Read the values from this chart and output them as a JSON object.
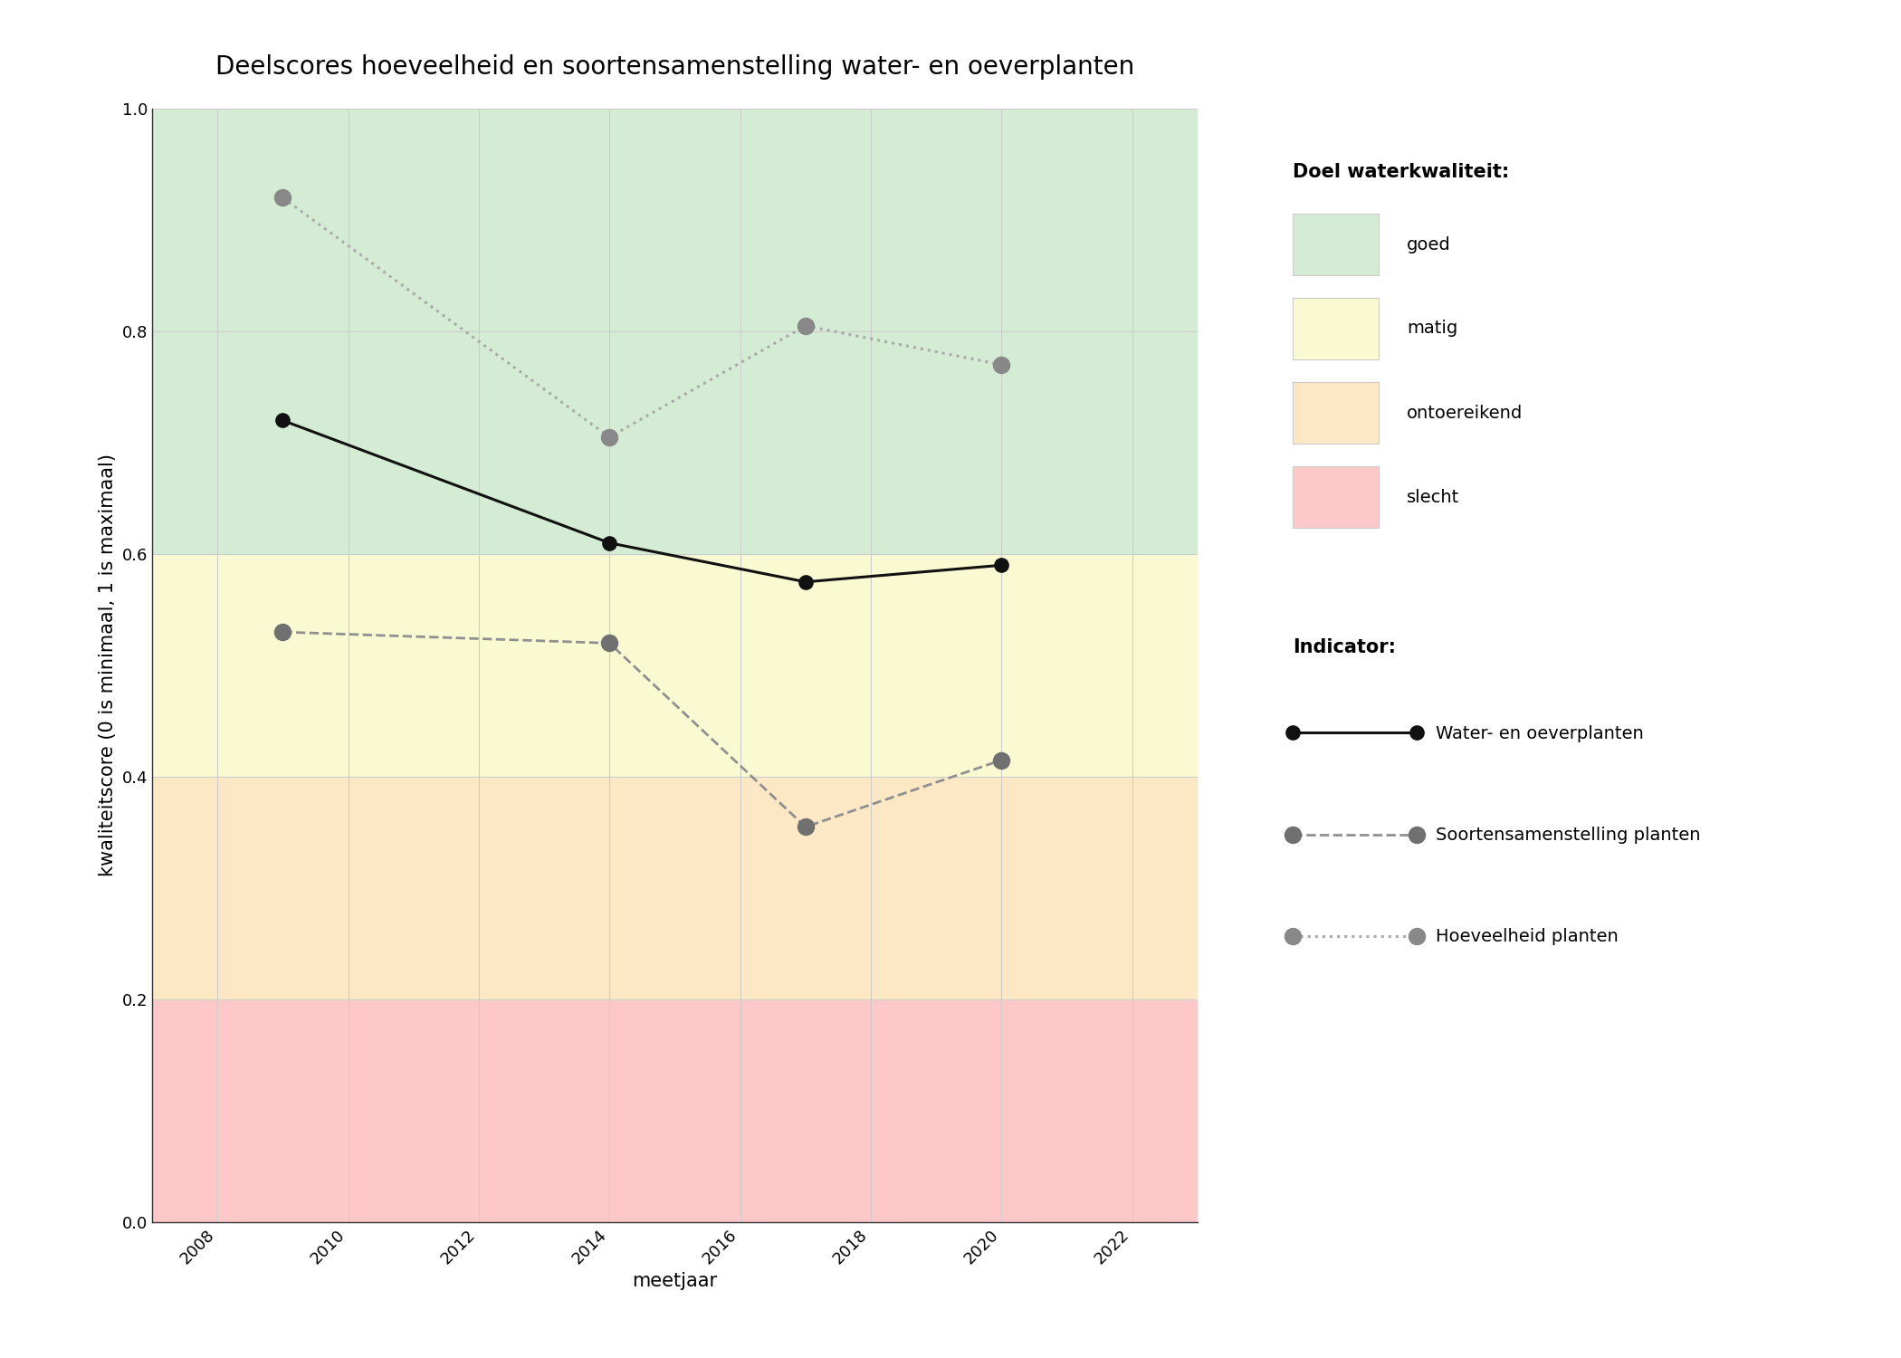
{
  "title": "Deelscores hoeveelheid en soortensamenstelling water- en oeverplanten",
  "xlabel": "meetjaar",
  "ylabel": "kwaliteitscore (0 is minimaal, 1 is maximaal)",
  "xlim": [
    2007,
    2023
  ],
  "ylim": [
    0.0,
    1.0
  ],
  "xticks": [
    2008,
    2010,
    2012,
    2014,
    2016,
    2018,
    2020,
    2022
  ],
  "yticks": [
    0.0,
    0.2,
    0.4,
    0.6,
    0.8,
    1.0
  ],
  "plot_bg_color": "#ffffff",
  "zone_colors": {
    "goed": "#d5ecd4",
    "matig": "#fafad2",
    "ontoereikend": "#fde8c5",
    "slecht": "#ffc8c8"
  },
  "zone_limits": {
    "goed": [
      0.6,
      1.0
    ],
    "matig": [
      0.4,
      0.6
    ],
    "ontoereikend": [
      0.2,
      0.4
    ],
    "slecht": [
      0.0,
      0.2
    ]
  },
  "series": {
    "water_oeverplanten": {
      "years": [
        2009,
        2014,
        2017,
        2020
      ],
      "values": [
        0.72,
        0.61,
        0.575,
        0.59
      ],
      "color": "#111111",
      "linestyle": "solid",
      "linewidth": 2.2,
      "marker": "o",
      "markersize": 11,
      "markerfacecolor": "#111111",
      "markeredgecolor": "#111111",
      "label": "Water- en oeverplanten"
    },
    "soortensamenstelling": {
      "years": [
        2009,
        2014,
        2017,
        2020
      ],
      "values": [
        0.53,
        0.52,
        0.355,
        0.415
      ],
      "color": "#909090",
      "linestyle": "dashed",
      "linewidth": 2.0,
      "marker": "o",
      "markersize": 13,
      "markerfacecolor": "#707070",
      "markeredgecolor": "#707070",
      "label": "Soortensamenstelling planten"
    },
    "hoeveelheid": {
      "years": [
        2009,
        2014,
        2017,
        2020
      ],
      "values": [
        0.92,
        0.705,
        0.805,
        0.77
      ],
      "color": "#aaaaaa",
      "linestyle": "dotted",
      "linewidth": 2.2,
      "marker": "o",
      "markersize": 13,
      "markerfacecolor": "#888888",
      "markeredgecolor": "#888888",
      "label": "Hoeveelheid planten"
    }
  },
  "legend_title_kwaliteit": "Doel waterkwaliteit:",
  "legend_title_indicator": "Indicator:",
  "legend_kwaliteit_labels": [
    "goed",
    "matig",
    "ontoereikend",
    "slecht"
  ],
  "legend_kwaliteit_colors": [
    "#d5ecd4",
    "#fafad2",
    "#fde8c5",
    "#ffc8c8"
  ],
  "title_fontsize": 20,
  "axis_label_fontsize": 15,
  "tick_fontsize": 13,
  "legend_fontsize": 14,
  "legend_title_fontsize": 15
}
